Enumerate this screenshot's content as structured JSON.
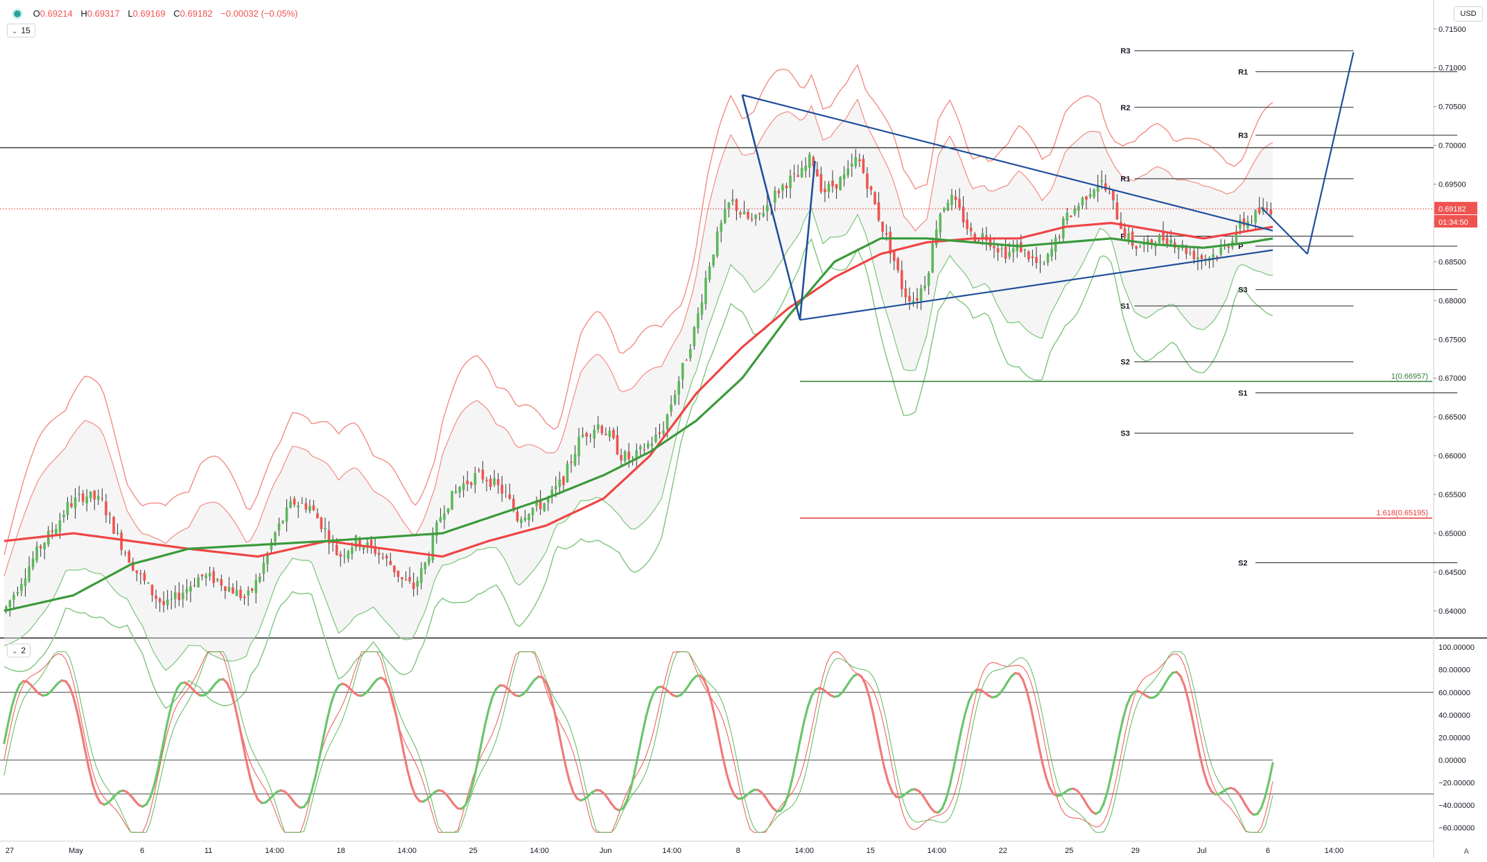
{
  "header": {
    "open_label": "O",
    "open": "0.69214",
    "high_label": "H",
    "high": "0.69317",
    "low_label": "L",
    "low": "0.69169",
    "close_label": "C",
    "close": "0.69182",
    "change": "−0.00032 (−0.05%)"
  },
  "main_pane": {
    "indicator_label": "15"
  },
  "osc_pane": {
    "indicator_label": "2"
  },
  "currency_button": "USD",
  "auto_button": "A",
  "price_tag": {
    "price": "0.69182",
    "countdown": "01:34:50"
  },
  "colors": {
    "up": "#5cb85c",
    "down": "#ef5350",
    "ma_red": "#ef4444",
    "ma_green": "#3a9a3a",
    "band_red": "#f28b82",
    "band_green": "#7cc47c",
    "drawing_blue": "#1f4e9a"
  },
  "chart_data": [
    {
      "type": "candlestick",
      "symbol_timeframe": "4h",
      "ylim": [
        0.6365,
        0.7165
      ],
      "y_ticks": [
        "0.71500",
        "0.71000",
        "0.70500",
        "0.70000",
        "0.69500",
        "0.69000",
        "0.68500",
        "0.68000",
        "0.67500",
        "0.67000",
        "0.66500",
        "0.66000",
        "0.65500",
        "0.65000",
        "0.64500",
        "0.64000"
      ],
      "y_tick_values": [
        0.715,
        0.71,
        0.705,
        0.7,
        0.695,
        0.69,
        0.685,
        0.68,
        0.675,
        0.67,
        0.665,
        0.66,
        0.655,
        0.65,
        0.645,
        0.64
      ],
      "x_ticks": [
        "27",
        "May",
        "6",
        "11",
        "14:00",
        "18",
        "14:00",
        "25",
        "14:00",
        "Jun",
        "14:00",
        "8",
        "14:00",
        "15",
        "14:00",
        "22",
        "25",
        "29",
        "Jul",
        "6",
        "14:00"
      ],
      "price_path": [
        [
          0,
          0.64
        ],
        [
          15,
          0.644
        ],
        [
          30,
          0.648
        ],
        [
          45,
          0.651
        ],
        [
          55,
          0.6535
        ],
        [
          70,
          0.655
        ],
        [
          85,
          0.654
        ],
        [
          100,
          0.649
        ],
        [
          115,
          0.645
        ],
        [
          130,
          0.642
        ],
        [
          140,
          0.6405
        ],
        [
          155,
          0.6425
        ],
        [
          170,
          0.6445
        ],
        [
          185,
          0.644
        ],
        [
          200,
          0.6425
        ],
        [
          210,
          0.6415
        ],
        [
          220,
          0.644
        ],
        [
          235,
          0.65
        ],
        [
          250,
          0.654
        ],
        [
          265,
          0.6535
        ],
        [
          280,
          0.65
        ],
        [
          290,
          0.647
        ],
        [
          305,
          0.649
        ],
        [
          320,
          0.648
        ],
        [
          335,
          0.646
        ],
        [
          345,
          0.644
        ],
        [
          355,
          0.643
        ],
        [
          365,
          0.646
        ],
        [
          380,
          0.653
        ],
        [
          395,
          0.656
        ],
        [
          410,
          0.6575
        ],
        [
          420,
          0.657
        ],
        [
          435,
          0.655
        ],
        [
          445,
          0.652
        ],
        [
          455,
          0.653
        ],
        [
          470,
          0.654
        ],
        [
          485,
          0.657
        ],
        [
          500,
          0.6625
        ],
        [
          515,
          0.664
        ],
        [
          525,
          0.6625
        ],
        [
          535,
          0.66
        ],
        [
          545,
          0.6595
        ],
        [
          555,
          0.661
        ],
        [
          570,
          0.663
        ],
        [
          580,
          0.6675
        ],
        [
          590,
          0.672
        ],
        [
          600,
          0.677
        ],
        [
          610,
          0.684
        ],
        [
          620,
          0.689
        ],
        [
          630,
          0.693
        ],
        [
          640,
          0.691
        ],
        [
          650,
          0.69
        ],
        [
          660,
          0.692
        ],
        [
          670,
          0.694
        ],
        [
          680,
          0.6955
        ],
        [
          690,
          0.696
        ],
        [
          700,
          0.6985
        ],
        [
          710,
          0.694
        ],
        [
          720,
          0.695
        ],
        [
          730,
          0.696
        ],
        [
          740,
          0.6985
        ],
        [
          750,
          0.6945
        ],
        [
          760,
          0.69
        ],
        [
          770,
          0.686
        ],
        [
          780,
          0.681
        ],
        [
          790,
          0.68
        ],
        [
          800,
          0.683
        ],
        [
          810,
          0.691
        ],
        [
          820,
          0.6935
        ],
        [
          830,
          0.691
        ],
        [
          840,
          0.688
        ],
        [
          850,
          0.6885
        ],
        [
          860,
          0.687
        ],
        [
          870,
          0.686
        ],
        [
          880,
          0.687
        ],
        [
          890,
          0.6855
        ],
        [
          900,
          0.684
        ],
        [
          910,
          0.687
        ],
        [
          920,
          0.6905
        ],
        [
          930,
          0.692
        ],
        [
          940,
          0.694
        ],
        [
          950,
          0.6955
        ],
        [
          960,
          0.693
        ],
        [
          970,
          0.689
        ],
        [
          980,
          0.687
        ],
        [
          990,
          0.687
        ],
        [
          1000,
          0.688
        ],
        [
          1010,
          0.688
        ],
        [
          1020,
          0.687
        ],
        [
          1030,
          0.686
        ],
        [
          1040,
          0.6855
        ],
        [
          1050,
          0.686
        ],
        [
          1060,
          0.687
        ],
        [
          1070,
          0.6895
        ],
        [
          1080,
          0.6905
        ],
        [
          1090,
          0.6915
        ],
        [
          1100,
          0.6918
        ]
      ],
      "moving_averages": [
        {
          "name": "",
          "color": "red",
          "points": [
            [
              0,
              0.649
            ],
            [
              60,
              0.65
            ],
            [
              110,
              0.649
            ],
            [
              160,
              0.648
            ],
            [
              220,
              0.647
            ],
            [
              280,
              0.649
            ],
            [
              330,
              0.648
            ],
            [
              380,
              0.647
            ],
            [
              420,
              0.649
            ],
            [
              470,
              0.651
            ],
            [
              520,
              0.6545
            ],
            [
              560,
              0.66
            ],
            [
              600,
              0.668
            ],
            [
              640,
              0.674
            ],
            [
              680,
              0.679
            ],
            [
              720,
              0.683
            ],
            [
              760,
              0.686
            ],
            [
              800,
              0.6875
            ],
            [
              840,
              0.688
            ],
            [
              880,
              0.688
            ],
            [
              920,
              0.6895
            ],
            [
              960,
              0.69
            ],
            [
              1000,
              0.689
            ],
            [
              1040,
              0.688
            ],
            [
              1080,
              0.689
            ],
            [
              1100,
              0.6895
            ]
          ]
        },
        {
          "name": "",
          "color": "green",
          "points": [
            [
              0,
              0.64
            ],
            [
              60,
              0.642
            ],
            [
              110,
              0.646
            ],
            [
              160,
              0.648
            ],
            [
              220,
              0.6485
            ],
            [
              280,
              0.649
            ],
            [
              330,
              0.6495
            ],
            [
              380,
              0.65
            ],
            [
              420,
              0.652
            ],
            [
              470,
              0.6545
            ],
            [
              520,
              0.6575
            ],
            [
              560,
              0.6605
            ],
            [
              600,
              0.6645
            ],
            [
              640,
              0.67
            ],
            [
              680,
              0.678
            ],
            [
              720,
              0.685
            ],
            [
              760,
              0.688
            ],
            [
              800,
              0.688
            ],
            [
              840,
              0.6875
            ],
            [
              880,
              0.687
            ],
            [
              920,
              0.6875
            ],
            [
              960,
              0.688
            ],
            [
              1000,
              0.6872
            ],
            [
              1040,
              0.6868
            ],
            [
              1080,
              0.6875
            ],
            [
              1100,
              0.688
            ]
          ]
        }
      ],
      "drawings": {
        "triangle": [
          [
            640,
            0.7065
          ],
          [
            1100,
            0.689
          ],
          [
            690,
            0.6775
          ],
          [
            1100,
            0.6865
          ]
        ],
        "projection": [
          [
            1090,
            0.692
          ],
          [
            1130,
            0.686
          ],
          [
            1170,
            0.712
          ]
        ],
        "horizontal_line": 0.6997,
        "fib_levels": [
          {
            "label": "1(0.66957)",
            "value": 0.66957,
            "color": "green"
          },
          {
            "label": "1.618(0.65195)",
            "value": 0.65195,
            "color": "red"
          }
        ],
        "pivots_a": [
          {
            "label": "R3",
            "value": 0.7122
          },
          {
            "label": "R2",
            "value": 0.7049
          },
          {
            "label": "R1",
            "value": 0.6957
          },
          {
            "label": "P",
            "value": 0.6883
          },
          {
            "label": "S1",
            "value": 0.6793
          },
          {
            "label": "S2",
            "value": 0.6721
          },
          {
            "label": "S3",
            "value": 0.6629
          }
        ],
        "pivots_b": [
          {
            "label": "R1",
            "value": 0.7095
          },
          {
            "label": "R3",
            "value": 0.7013
          },
          {
            "label": "P",
            "value": 0.687
          },
          {
            "label": "S3",
            "value": 0.6814
          },
          {
            "label": "S1",
            "value": 0.6681
          },
          {
            "label": "S2",
            "value": 0.6462
          }
        ]
      }
    },
    {
      "type": "line",
      "name": "oscillator",
      "ylim": [
        -70,
        105
      ],
      "y_ticks": [
        "100.00000",
        "80.00000",
        "60.00000",
        "40.00000",
        "20.00000",
        "0.00000",
        "−20.00000",
        "−40.00000",
        "−60.00000"
      ],
      "y_tick_values": [
        100,
        80,
        60,
        40,
        20,
        0,
        -20,
        -40,
        -60
      ],
      "levels": [
        60,
        0,
        -30
      ]
    }
  ]
}
